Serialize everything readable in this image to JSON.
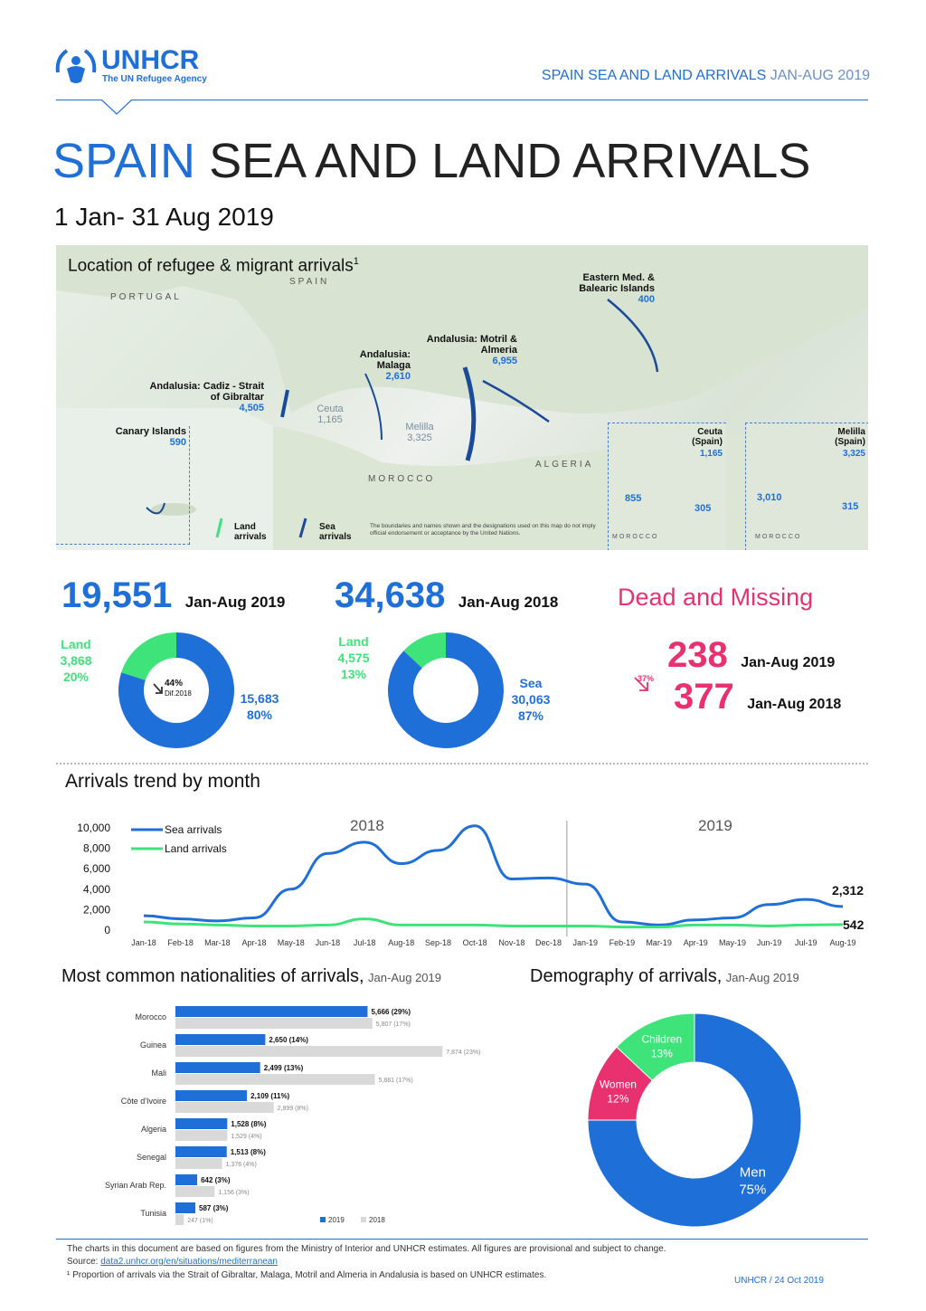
{
  "header": {
    "org_name": "UNHCR",
    "org_tagline": "The UN Refugee Agency",
    "top_right_strong": "SPAIN SEA AND LAND ARRIVALS",
    "top_right_light": "JAN-AUG 2019"
  },
  "title": {
    "strong": "SPAIN",
    "rest": "SEA AND LAND ARRIVALS",
    "subtitle": "1 Jan- 31 Aug 2019"
  },
  "map": {
    "heading": "Location of refugee & migrant arrivals",
    "heading_sup": "1",
    "country_spain": "SPAIN",
    "country_portugal": "PORTUGAL",
    "country_morocco": "MOROCCO",
    "country_algeria": "ALGERIA",
    "labels": [
      {
        "name": "Eastern Med. & Balearic Islands",
        "value": "400"
      },
      {
        "name": "Andalusia: Motril & Almeria",
        "value": "6,955"
      },
      {
        "name": "Andalusia: Malaga",
        "value": "2,610"
      },
      {
        "name": "Andalusia: Cadiz - Strait of Gibraltar",
        "value": "4,505"
      },
      {
        "name": "Ceuta",
        "value": "1,165"
      },
      {
        "name": "Melilla",
        "value": "3,325"
      },
      {
        "name": "Canary Islands",
        "value": "590"
      }
    ],
    "legend_land": "Land arrivals",
    "legend_sea": "Sea arrivals",
    "disclaimer": "The boundaries and names shown and the designations used on this map do not imply official endorsement or acceptance by the United Nations.",
    "inset_ceuta": {
      "title": "Ceuta (Spain)",
      "total": "1,165",
      "land": "855",
      "sea": "305",
      "country": "MOROCCO"
    },
    "inset_melilla": {
      "title": "Melilla (Spain)",
      "total": "3,325",
      "land": "3,010",
      "sea": "315",
      "country": "MOROCCO"
    }
  },
  "totals": {
    "y2019": {
      "value": "19,551",
      "period": "Jan-Aug 2019",
      "land_label": "Land",
      "land_value": "3,868",
      "land_pct": "20%",
      "sea_value": "15,683",
      "sea_pct": "80%",
      "change_pct": "44%",
      "change_ref": "Dif.2018",
      "land_share": 0.2
    },
    "y2018": {
      "value": "34,638",
      "period": "Jan-Aug 2018",
      "land_label": "Land",
      "land_value": "4,575",
      "land_pct": "13%",
      "sea_label": "Sea",
      "sea_value": "30,063",
      "sea_pct": "87%",
      "land_share": 0.13
    },
    "dead": {
      "title": "Dead and Missing",
      "change": "37%",
      "v2019": "238",
      "p2019": "Jan-Aug 2019",
      "v2018": "377",
      "p2018": "Jan-Aug 2018"
    }
  },
  "trend": {
    "title": "Arrivals trend by month",
    "year_a": "2018",
    "year_b": "2019",
    "legend_sea": "Sea arrivals",
    "legend_land": "Land arrivals",
    "y_ticks": [
      "10,000",
      "8,000",
      "6,000",
      "4,000",
      "2,000",
      "0"
    ],
    "end_sea": "2,312",
    "end_land": "542"
  },
  "chart_data": [
    {
      "type": "line",
      "title": "Arrivals trend by month",
      "x": [
        "Jan-18",
        "Feb-18",
        "Mar-18",
        "Apr-18",
        "May-18",
        "Jun-18",
        "Jul-18",
        "Aug-18",
        "Sep-18",
        "Oct-18",
        "Nov-18",
        "Dec-18",
        "Jan-19",
        "Feb-19",
        "Mar-19",
        "Apr-19",
        "May-19",
        "Jun-19",
        "Jul-19",
        "Aug-19"
      ],
      "series": [
        {
          "name": "Sea arrivals",
          "color": "#1f6fd8",
          "values": [
            1400,
            1100,
            900,
            1200,
            4000,
            7500,
            8600,
            6500,
            7800,
            10200,
            5000,
            5100,
            4500,
            800,
            500,
            1000,
            1200,
            2500,
            3000,
            2312
          ]
        },
        {
          "name": "Land arrivals",
          "color": "#3ee37a",
          "values": [
            800,
            600,
            500,
            400,
            400,
            500,
            1100,
            500,
            500,
            500,
            400,
            400,
            400,
            300,
            300,
            500,
            500,
            400,
            500,
            542
          ]
        }
      ],
      "ylim": [
        0,
        10000
      ],
      "grid": false,
      "legend": "top-left"
    },
    {
      "type": "bar",
      "title": "Most common nationalities of arrivals,",
      "title_suffix": "Jan-Aug 2019",
      "categories": [
        "Morocco",
        "Guinea",
        "Mali",
        "Côte d'Ivoire",
        "Algeria",
        "Senegal",
        "Syrian Arab Rep.",
        "Tunisia"
      ],
      "series": [
        {
          "name": "2019",
          "color": "#1f6fd8",
          "values": [
            5666,
            2650,
            2499,
            2109,
            1528,
            1513,
            642,
            587
          ],
          "labels": [
            "5,666 (29%)",
            "2,650 (14%)",
            "2,499 (13%)",
            "2,109 (11%)",
            "1,528 (8%)",
            "1,513 (8%)",
            "642 (3%)",
            "587 (3%)"
          ]
        },
        {
          "name": "2018",
          "color": "#d9d9d9",
          "values": [
            5807,
            7874,
            5881,
            2899,
            1529,
            1376,
            1156,
            247
          ],
          "labels": [
            "5,807 (17%)",
            "7,874 (23%)",
            "5,881 (17%)",
            "2,899 (8%)",
            "1,529 (4%)",
            "1,376 (4%)",
            "1,156 (3%)",
            "247 (1%)"
          ]
        }
      ],
      "legend": "bottom-right"
    },
    {
      "type": "pie",
      "title": "Demography of arrivals,",
      "title_suffix": "Jan-Aug 2019",
      "categories": [
        "Men",
        "Women",
        "Children"
      ],
      "values": [
        75,
        12,
        13
      ],
      "labels": [
        "75%",
        "12%",
        "13%"
      ],
      "colors": [
        "#1f6fd8",
        "#e8316e",
        "#3ee37a"
      ]
    }
  ],
  "footer": {
    "note": "The charts in this document are based on figures from the Ministry of Interior and UNHCR estimates. All figures are provisional and subject to change.",
    "source_label": "Source:",
    "source_link": "data2.unhcr.org/en/situations/mediterranean",
    "footnote": "¹ Proportion of arrivals via the Strait of Gibraltar, Malaga, Motril and Almeria in Andalusia is based on UNHCR estimates.",
    "credit": "UNHCR / 24 Oct 2019"
  }
}
